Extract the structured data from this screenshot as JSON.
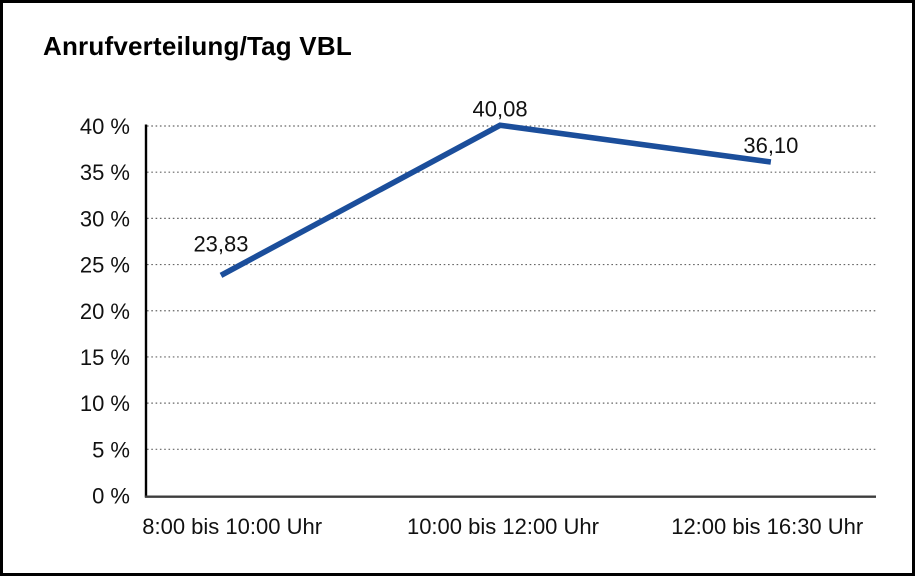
{
  "figure": {
    "title": "Anrufverteilung/Tag VBL"
  },
  "chart_data": {
    "type": "line",
    "title": "Anrufverteilung/Tag VBL",
    "categories": [
      "8:00 bis 10:00 Uhr",
      "10:00 bis 12:00 Uhr",
      "12:00 bis 16:30 Uhr"
    ],
    "values": [
      23.83,
      40.08,
      36.1
    ],
    "data_labels": [
      "23,83",
      "40,08",
      "36,10"
    ],
    "xlabel": "",
    "ylabel": "",
    "ylim": [
      0,
      40
    ],
    "ytick_step": 5,
    "ytick_labels": [
      "0 %",
      "5 %",
      "10 %",
      "15 %",
      "20 %",
      "25 %",
      "30 %",
      "35 %",
      "40 %"
    ],
    "grid": "horizontal-dotted",
    "legend": "none"
  },
  "colors": {
    "line": "#1B4E9B",
    "grid": "#666666",
    "y_axis": "#000000",
    "x_axis": "#3d3d3d",
    "text": "#111111",
    "title_text": "#000000",
    "border": "#000000",
    "background": "#ffffff"
  }
}
